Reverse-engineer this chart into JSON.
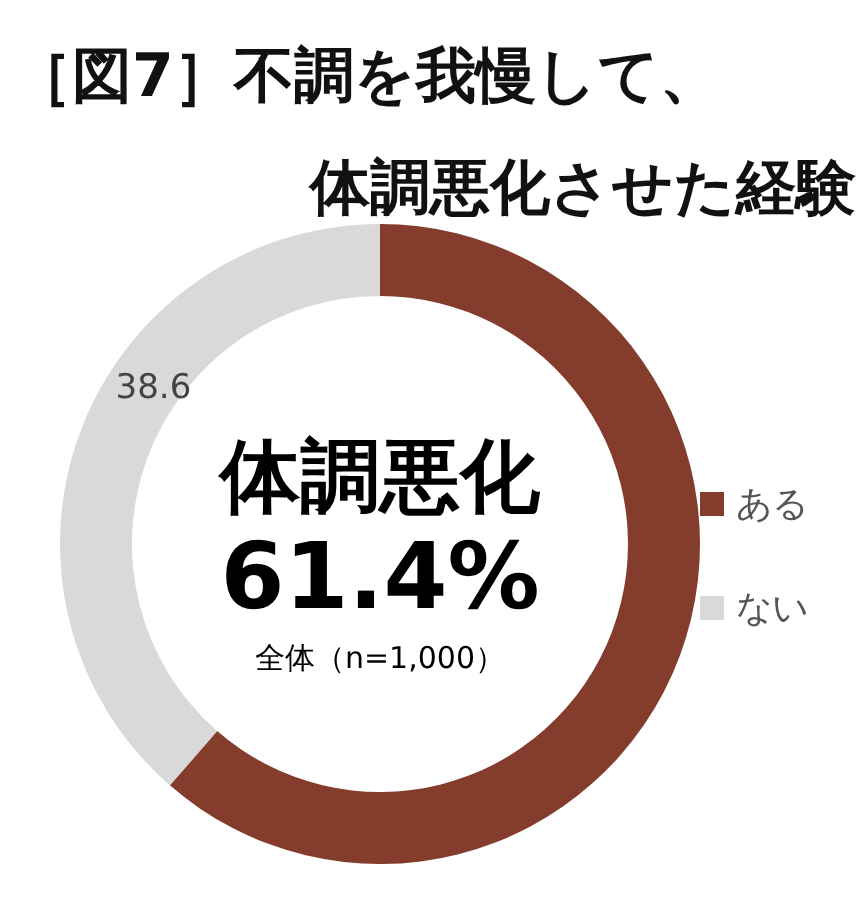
{
  "chart_data": {
    "type": "donut",
    "title": "［図7］不調を我慢して、",
    "subtitle": "体調悪化させた経験",
    "categories": [
      "ある",
      "ない"
    ],
    "values": [
      61.4,
      38.6
    ],
    "colors": [
      "#843c2c",
      "#d9d9d9"
    ],
    "value_labels": [
      "61.4%",
      "38.6"
    ],
    "annotations": [
      "体調悪化",
      "全体（n=1,000）"
    ],
    "legend": "right"
  }
}
